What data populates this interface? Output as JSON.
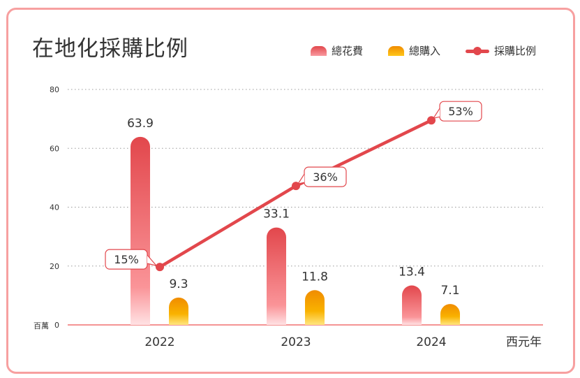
{
  "title": "在地化採購比例",
  "legend": [
    {
      "label": "總花費",
      "kind": "bar",
      "color": "#e2474c"
    },
    {
      "label": "總購入",
      "kind": "bar",
      "color": "#f08c00"
    },
    {
      "label": "採購比例",
      "kind": "line",
      "color": "#e2474c"
    }
  ],
  "colors": {
    "card_border": "#f7a0a0",
    "spend_top": "#e2474c",
    "spend_bottom": "#ffd6da",
    "purchase_top": "#f08c00",
    "purchase_bottom": "#ffe27a",
    "line": "#e2474c",
    "axis": "#f07070",
    "grid": "#999999"
  },
  "chart_data": {
    "type": "bar",
    "title": "在地化採購比例",
    "xlabel": "西元年",
    "ylabel": "百萬",
    "categories": [
      "2022",
      "2023",
      "2024"
    ],
    "ylim": [
      0,
      80
    ],
    "yticks": [
      0,
      20,
      40,
      60,
      80
    ],
    "grid": true,
    "legend_position": "top-right",
    "series": [
      {
        "name": "總花費",
        "type": "bar",
        "values": [
          63.9,
          33.1,
          13.4
        ],
        "labels": [
          "63.9",
          "33.1",
          "13.4"
        ]
      },
      {
        "name": "總購入",
        "type": "bar",
        "values": [
          9.3,
          11.8,
          7.1
        ],
        "labels": [
          "9.3",
          "11.8",
          "7.1"
        ]
      },
      {
        "name": "採購比例",
        "type": "line",
        "values": [
          15,
          36,
          53
        ],
        "unit": "%",
        "labels": [
          "15%",
          "36%",
          "53%"
        ],
        "secondary_axis_range": [
          0,
          61
        ]
      }
    ]
  }
}
